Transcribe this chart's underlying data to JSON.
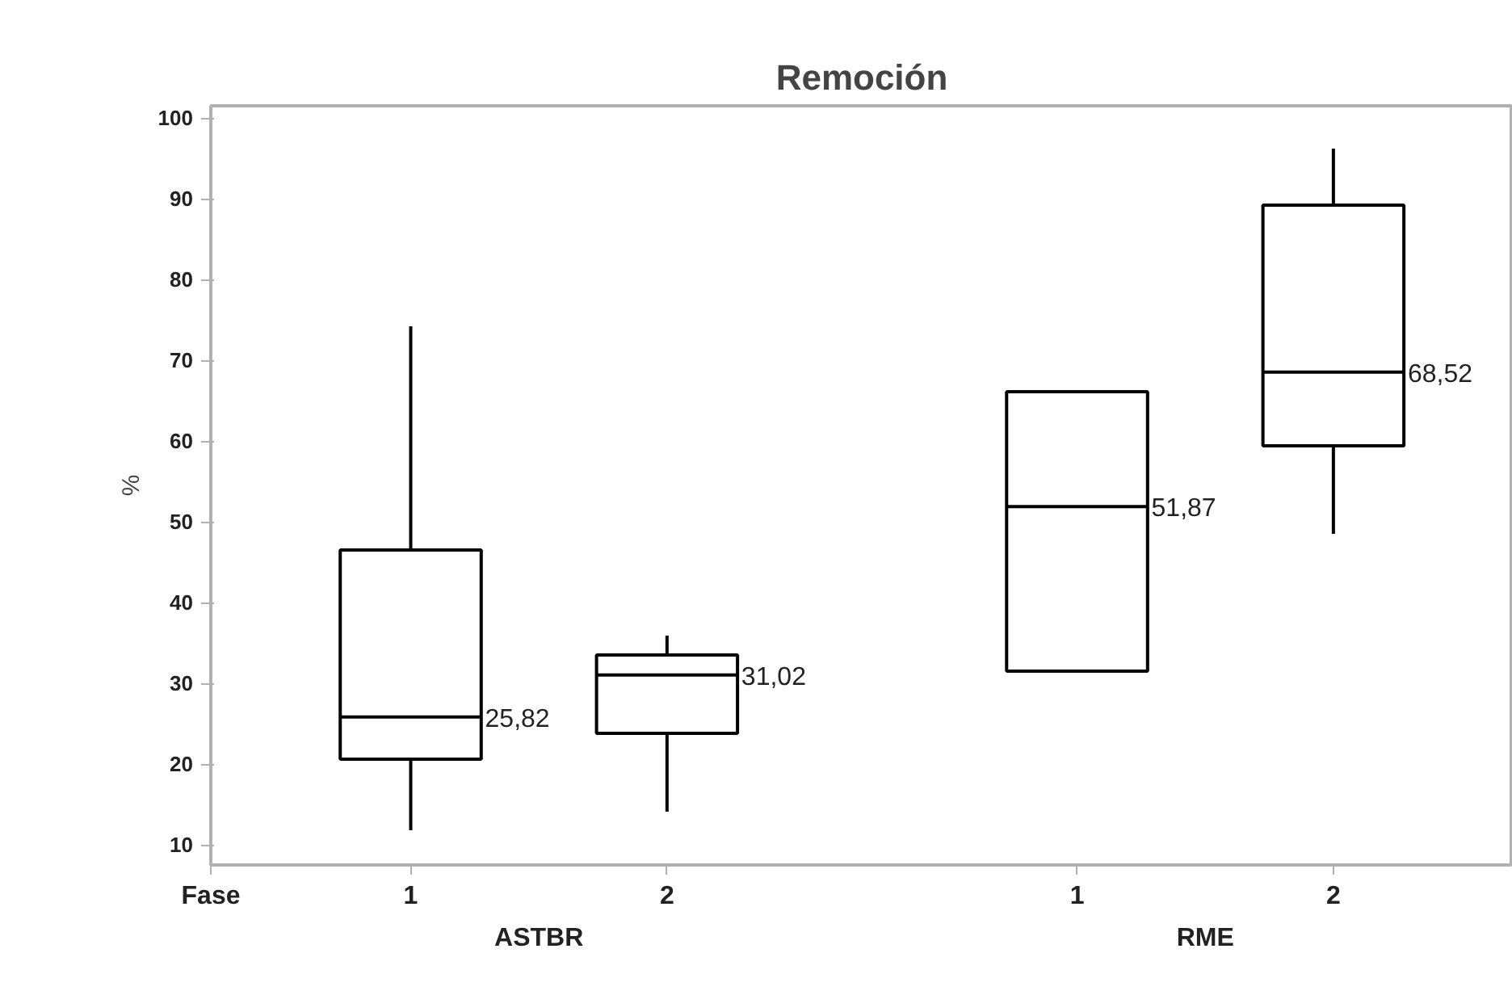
{
  "chart_data": {
    "type": "box",
    "title": "Remoción",
    "xlabel": "Fase",
    "ylabel": "%",
    "categories": [
      "1",
      "2",
      "1",
      "2"
    ],
    "boxes": [
      {
        "low": 11.8,
        "q1": 20.6,
        "median": 25.82,
        "q3": 46.5,
        "high": 74.2
      },
      {
        "low": 14.1,
        "q1": 23.8,
        "median": 31.02,
        "q3": 33.5,
        "high": 35.9
      },
      {
        "low": 31.5,
        "q1": 31.5,
        "median": 51.87,
        "q3": 66.1,
        "high": 66.1
      },
      {
        "low": 48.5,
        "q1": 59.4,
        "median": 68.52,
        "q3": 89.2,
        "high": 96.2
      }
    ],
    "value_labels": [
      "25,82",
      "31,02",
      "51,87",
      "68,52"
    ],
    "annotations": [
      "ASTBR",
      "RME"
    ],
    "ylim": [
      7.5,
      101.5
    ],
    "yticks": [
      10,
      20,
      30,
      40,
      50,
      60,
      70,
      80,
      90,
      100
    ],
    "grid": false
  }
}
